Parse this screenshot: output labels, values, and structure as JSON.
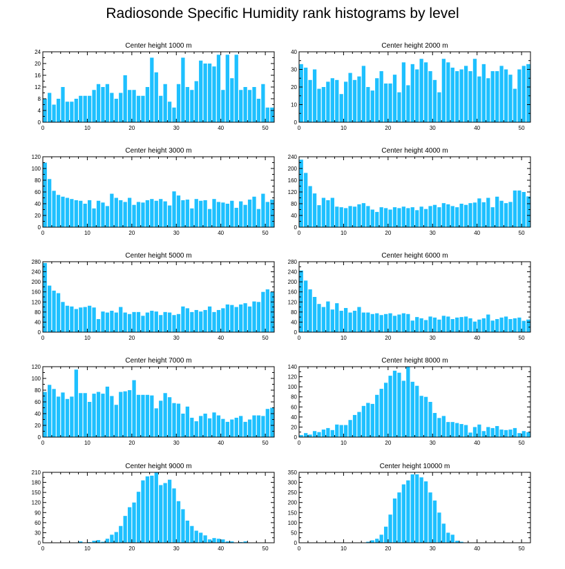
{
  "title": "Radiosonde Specific Humidity rank histograms by level",
  "colors": {
    "bar": "#1ec0ff",
    "axis": "#000000",
    "background": "#ffffff"
  },
  "chart_data": [
    {
      "type": "bar",
      "title": "Center height 1000 m",
      "xlim": [
        0,
        52
      ],
      "ylim": [
        0,
        24
      ],
      "yticks": [
        0,
        4,
        8,
        12,
        16,
        20,
        24
      ],
      "xticks": [
        0,
        10,
        20,
        30,
        40,
        50
      ],
      "categories": [
        0,
        1,
        2,
        3,
        4,
        5,
        6,
        7,
        8,
        9,
        10,
        11,
        12,
        13,
        14,
        15,
        16,
        17,
        18,
        19,
        20,
        21,
        22,
        23,
        24,
        25,
        26,
        27,
        28,
        29,
        30,
        31,
        32,
        33,
        34,
        35,
        36,
        37,
        38,
        39,
        40,
        41,
        42,
        43,
        44,
        45,
        46,
        47,
        48,
        49,
        50,
        51
      ],
      "values": [
        8,
        10,
        6,
        8,
        12,
        7,
        7,
        8,
        9,
        9,
        9,
        11,
        13,
        12,
        13,
        10,
        8,
        10,
        16,
        11,
        11,
        9,
        9,
        12,
        22,
        17,
        9,
        13,
        7,
        5,
        13,
        22,
        12,
        11,
        14,
        21,
        20,
        20,
        19,
        23,
        11,
        23,
        15,
        23,
        11,
        12,
        11,
        12,
        8,
        13,
        5,
        5
      ]
    },
    {
      "type": "bar",
      "title": "Center height 2000 m",
      "xlim": [
        0,
        52
      ],
      "ylim": [
        0,
        40
      ],
      "yticks": [
        0,
        10,
        20,
        30,
        40
      ],
      "xticks": [
        0,
        10,
        20,
        30,
        40,
        50
      ],
      "categories": [
        0,
        1,
        2,
        3,
        4,
        5,
        6,
        7,
        8,
        9,
        10,
        11,
        12,
        13,
        14,
        15,
        16,
        17,
        18,
        19,
        20,
        21,
        22,
        23,
        24,
        25,
        26,
        27,
        28,
        29,
        30,
        31,
        32,
        33,
        34,
        35,
        36,
        37,
        38,
        39,
        40,
        41,
        42,
        43,
        44,
        45,
        46,
        47,
        48,
        49,
        50,
        51
      ],
      "values": [
        33,
        31,
        24,
        30,
        19,
        20,
        23,
        25,
        24,
        16,
        23,
        28,
        24,
        26,
        32,
        20,
        18,
        25,
        29,
        22,
        22,
        27,
        17,
        34,
        21,
        33,
        30,
        36,
        34,
        29,
        24,
        17,
        36,
        34,
        31,
        29,
        30,
        32,
        29,
        36,
        26,
        33,
        25,
        29,
        29,
        32,
        30,
        27,
        19,
        30,
        32,
        33
      ]
    },
    {
      "type": "bar",
      "title": "Center height 3000 m",
      "xlim": [
        0,
        52
      ],
      "ylim": [
        0,
        120
      ],
      "yticks": [
        0,
        20,
        40,
        60,
        80,
        100,
        120
      ],
      "xticks": [
        0,
        10,
        20,
        30,
        40,
        50
      ],
      "categories": [
        0,
        1,
        2,
        3,
        4,
        5,
        6,
        7,
        8,
        9,
        10,
        11,
        12,
        13,
        14,
        15,
        16,
        17,
        18,
        19,
        20,
        21,
        22,
        23,
        24,
        25,
        26,
        27,
        28,
        29,
        30,
        31,
        32,
        33,
        34,
        35,
        36,
        37,
        38,
        39,
        40,
        41,
        42,
        43,
        44,
        45,
        46,
        47,
        48,
        49,
        50,
        51
      ],
      "values": [
        110,
        82,
        62,
        55,
        52,
        50,
        48,
        46,
        45,
        40,
        46,
        32,
        45,
        42,
        36,
        57,
        50,
        46,
        43,
        50,
        38,
        43,
        42,
        46,
        48,
        45,
        48,
        44,
        37,
        61,
        54,
        46,
        47,
        32,
        48,
        45,
        46,
        31,
        48,
        43,
        42,
        40,
        45,
        33,
        44,
        38,
        47,
        52,
        31,
        57,
        43,
        47
      ]
    },
    {
      "type": "bar",
      "title": "Center height 4000 m",
      "xlim": [
        0,
        52
      ],
      "ylim": [
        0,
        240
      ],
      "yticks": [
        0,
        40,
        80,
        120,
        160,
        200,
        240
      ],
      "xticks": [
        0,
        10,
        20,
        30,
        40,
        50
      ],
      "categories": [
        0,
        1,
        2,
        3,
        4,
        5,
        6,
        7,
        8,
        9,
        10,
        11,
        12,
        13,
        14,
        15,
        16,
        17,
        18,
        19,
        20,
        21,
        22,
        23,
        24,
        25,
        26,
        27,
        28,
        29,
        30,
        31,
        32,
        33,
        34,
        35,
        36,
        37,
        38,
        39,
        40,
        41,
        42,
        43,
        44,
        45,
        46,
        47,
        48,
        49,
        50,
        51
      ],
      "values": [
        230,
        185,
        140,
        115,
        75,
        100,
        92,
        100,
        70,
        68,
        65,
        72,
        70,
        78,
        82,
        72,
        60,
        52,
        68,
        65,
        60,
        68,
        65,
        70,
        65,
        68,
        58,
        70,
        62,
        72,
        76,
        68,
        82,
        78,
        72,
        68,
        80,
        76,
        82,
        84,
        98,
        85,
        100,
        68,
        104,
        90,
        82,
        86,
        125,
        125,
        120,
        105
      ]
    },
    {
      "type": "bar",
      "title": "Center height 5000 m",
      "xlim": [
        0,
        52
      ],
      "ylim": [
        0,
        280
      ],
      "yticks": [
        0,
        40,
        80,
        120,
        160,
        200,
        240,
        280
      ],
      "xticks": [
        0,
        10,
        20,
        30,
        40,
        50
      ],
      "categories": [
        0,
        1,
        2,
        3,
        4,
        5,
        6,
        7,
        8,
        9,
        10,
        11,
        12,
        13,
        14,
        15,
        16,
        17,
        18,
        19,
        20,
        21,
        22,
        23,
        24,
        25,
        26,
        27,
        28,
        29,
        30,
        31,
        32,
        33,
        34,
        35,
        36,
        37,
        38,
        39,
        40,
        41,
        42,
        43,
        44,
        45,
        46,
        47,
        48,
        49,
        50,
        51
      ],
      "values": [
        275,
        185,
        165,
        155,
        120,
        105,
        102,
        92,
        98,
        100,
        105,
        98,
        52,
        82,
        78,
        85,
        78,
        100,
        78,
        72,
        80,
        80,
        65,
        78,
        85,
        82,
        68,
        80,
        78,
        68,
        72,
        102,
        95,
        80,
        88,
        82,
        88,
        102,
        80,
        88,
        95,
        110,
        108,
        100,
        110,
        115,
        102,
        122,
        120,
        160,
        170,
        160
      ]
    },
    {
      "type": "bar",
      "title": "Center height 6000 m",
      "xlim": [
        0,
        52
      ],
      "ylim": [
        0,
        280
      ],
      "yticks": [
        0,
        40,
        80,
        120,
        160,
        200,
        240,
        280
      ],
      "xticks": [
        0,
        10,
        20,
        30,
        40,
        50
      ],
      "categories": [
        0,
        1,
        2,
        3,
        4,
        5,
        6,
        7,
        8,
        9,
        10,
        11,
        12,
        13,
        14,
        15,
        16,
        17,
        18,
        19,
        20,
        21,
        22,
        23,
        24,
        25,
        26,
        27,
        28,
        29,
        30,
        31,
        32,
        33,
        34,
        35,
        36,
        37,
        38,
        39,
        40,
        41,
        42,
        43,
        44,
        45,
        46,
        47,
        48,
        49,
        50,
        51
      ],
      "values": [
        245,
        205,
        170,
        140,
        112,
        100,
        122,
        90,
        115,
        85,
        96,
        78,
        85,
        100,
        78,
        78,
        72,
        75,
        68,
        72,
        75,
        65,
        70,
        75,
        72,
        46,
        60,
        55,
        48,
        62,
        58,
        50,
        65,
        62,
        52,
        58,
        60,
        62,
        55,
        42,
        50,
        55,
        70,
        46,
        52,
        58,
        62,
        52,
        55,
        58,
        45,
        50
      ]
    },
    {
      "type": "bar",
      "title": "Center height 7000 m",
      "xlim": [
        0,
        52
      ],
      "ylim": [
        0,
        120
      ],
      "yticks": [
        0,
        20,
        40,
        60,
        80,
        100,
        120
      ],
      "xticks": [
        0,
        10,
        20,
        30,
        40,
        50
      ],
      "categories": [
        0,
        1,
        2,
        3,
        4,
        5,
        6,
        7,
        8,
        9,
        10,
        11,
        12,
        13,
        14,
        15,
        16,
        17,
        18,
        19,
        20,
        21,
        22,
        23,
        24,
        25,
        26,
        27,
        28,
        29,
        30,
        31,
        32,
        33,
        34,
        35,
        36,
        37,
        38,
        39,
        40,
        41,
        42,
        43,
        44,
        45,
        46,
        47,
        48,
        49,
        50,
        51
      ],
      "values": [
        77,
        89,
        82,
        69,
        76,
        65,
        69,
        115,
        75,
        75,
        60,
        74,
        77,
        74,
        86,
        70,
        55,
        77,
        78,
        80,
        97,
        72,
        72,
        72,
        71,
        49,
        62,
        75,
        68,
        58,
        57,
        40,
        52,
        33,
        27,
        36,
        40,
        32,
        42,
        37,
        31,
        26,
        30,
        33,
        36,
        26,
        30,
        37,
        37,
        36,
        48,
        50
      ]
    },
    {
      "type": "bar",
      "title": "Center height 8000 m",
      "xlim": [
        0,
        52
      ],
      "ylim": [
        0,
        140
      ],
      "yticks": [
        0,
        20,
        40,
        60,
        80,
        100,
        120,
        140
      ],
      "xticks": [
        0,
        10,
        20,
        30,
        40,
        50
      ],
      "categories": [
        0,
        1,
        2,
        3,
        4,
        5,
        6,
        7,
        8,
        9,
        10,
        11,
        12,
        13,
        14,
        15,
        16,
        17,
        18,
        19,
        20,
        21,
        22,
        23,
        24,
        25,
        26,
        27,
        28,
        29,
        30,
        31,
        32,
        33,
        34,
        35,
        36,
        37,
        38,
        39,
        40,
        41,
        42,
        43,
        44,
        45,
        46,
        47,
        48,
        49,
        50,
        51
      ],
      "values": [
        4,
        8,
        5,
        12,
        10,
        15,
        18,
        14,
        25,
        24,
        24,
        34,
        44,
        50,
        62,
        68,
        66,
        84,
        96,
        108,
        122,
        132,
        128,
        112,
        140,
        110,
        102,
        82,
        80,
        70,
        48,
        38,
        42,
        30,
        30,
        28,
        26,
        24,
        9,
        20,
        25,
        12,
        20,
        18,
        22,
        15,
        14,
        15,
        18,
        8,
        12,
        10
      ]
    },
    {
      "type": "bar",
      "title": "Center height 9000 m",
      "xlim": [
        0,
        52
      ],
      "ylim": [
        0,
        210
      ],
      "yticks": [
        0,
        30,
        60,
        90,
        120,
        150,
        180,
        210
      ],
      "xticks": [
        0,
        10,
        20,
        30,
        40,
        50
      ],
      "categories": [
        0,
        1,
        2,
        3,
        4,
        5,
        6,
        7,
        8,
        9,
        10,
        11,
        12,
        13,
        14,
        15,
        16,
        17,
        18,
        19,
        20,
        21,
        22,
        23,
        24,
        25,
        26,
        27,
        28,
        29,
        30,
        31,
        32,
        33,
        34,
        35,
        36,
        37,
        38,
        39,
        40,
        41,
        42,
        43,
        44,
        45,
        46,
        47,
        48,
        49,
        50,
        51
      ],
      "values": [
        0,
        0,
        0,
        0,
        0,
        0,
        0,
        0,
        4,
        0,
        2,
        6,
        8,
        3,
        12,
        24,
        32,
        50,
        80,
        106,
        120,
        152,
        186,
        198,
        200,
        210,
        172,
        178,
        188,
        162,
        124,
        100,
        66,
        50,
        36,
        30,
        22,
        10,
        14,
        12,
        10,
        4,
        4,
        0,
        2,
        4,
        0,
        0,
        0,
        0,
        0,
        0
      ]
    },
    {
      "type": "bar",
      "title": "Center height 10000 m",
      "xlim": [
        0,
        52
      ],
      "ylim": [
        0,
        350
      ],
      "yticks": [
        0,
        50,
        100,
        150,
        200,
        250,
        300,
        350
      ],
      "xticks": [
        0,
        10,
        20,
        30,
        40,
        50
      ],
      "categories": [
        0,
        1,
        2,
        3,
        4,
        5,
        6,
        7,
        8,
        9,
        10,
        11,
        12,
        13,
        14,
        15,
        16,
        17,
        18,
        19,
        20,
        21,
        22,
        23,
        24,
        25,
        26,
        27,
        28,
        29,
        30,
        31,
        32,
        33,
        34,
        35,
        36,
        37,
        38,
        39,
        40,
        41,
        42,
        43,
        44,
        45,
        46,
        47,
        48,
        49,
        50,
        51
      ],
      "values": [
        0,
        0,
        0,
        0,
        0,
        0,
        0,
        0,
        0,
        0,
        0,
        0,
        0,
        0,
        0,
        5,
        12,
        20,
        40,
        80,
        140,
        220,
        250,
        290,
        310,
        340,
        340,
        325,
        305,
        250,
        210,
        150,
        95,
        50,
        40,
        10,
        5,
        0,
        0,
        0,
        0,
        0,
        0,
        0,
        0,
        0,
        0,
        0,
        0,
        0,
        0,
        0
      ]
    }
  ]
}
